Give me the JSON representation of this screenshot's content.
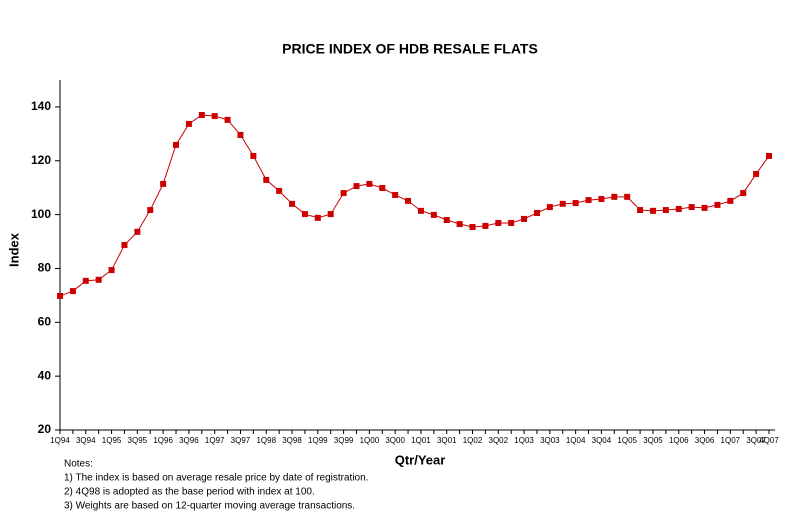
{
  "chart_data": {
    "type": "line",
    "title": "PRICE INDEX OF HDB RESALE FLATS",
    "x_label": "Qtr/Year",
    "y_label": "Index",
    "categories": [
      "1Q94",
      null,
      "3Q94",
      null,
      "1Q95",
      null,
      "3Q95",
      null,
      "1Q96",
      null,
      "3Q96",
      null,
      "1Q97",
      null,
      "3Q97",
      null,
      "1Q98",
      null,
      "3Q98",
      null,
      "1Q99",
      null,
      "3Q99",
      null,
      "1Q00",
      null,
      "3Q00",
      null,
      "1Q01",
      null,
      "3Q01",
      null,
      "1Q02",
      null,
      "3Q02",
      null,
      "1Q03",
      null,
      "3Q03",
      null,
      "1Q04",
      null,
      "3Q04",
      null,
      "1Q05",
      null,
      "3Q05",
      null,
      "1Q06",
      null,
      "3Q06",
      null,
      "1Q07",
      null,
      "3Q07",
      "4Q07"
    ],
    "series": [
      {
        "color": "#cc0000",
        "values": [
          69.8,
          71.6,
          75.4,
          75.8,
          79.4,
          88.7,
          93.6,
          101.7,
          111.4,
          125.9,
          133.7,
          137,
          136.6,
          135.2,
          129.6,
          121.8,
          112.9,
          108.8,
          104,
          100.2,
          98.8,
          100.2,
          108,
          110.6,
          111.4,
          109.9,
          107.3,
          105.1,
          101.4,
          99.9,
          98,
          96.5,
          95.4,
          95.8,
          96.9,
          96.9,
          98.4,
          100.6,
          102.8,
          104,
          104.3,
          105.4,
          105.8,
          106.6,
          106.6,
          101.7,
          101.4,
          101.7,
          102.1,
          102.8,
          102.5,
          103.6,
          105.1,
          108,
          115.1,
          121.8
        ]
      }
    ],
    "ylim": [
      20,
      150
    ],
    "yticks": [
      20,
      40,
      60,
      80,
      100,
      120,
      140
    ],
    "notes": [
      "Notes:",
      "1) The index  is based on average resale price by date of registration.",
      "2) 4Q98 is adopted as the base period with index at 100.",
      "3) Weights are based on 12-quarter moving average transactions."
    ]
  }
}
